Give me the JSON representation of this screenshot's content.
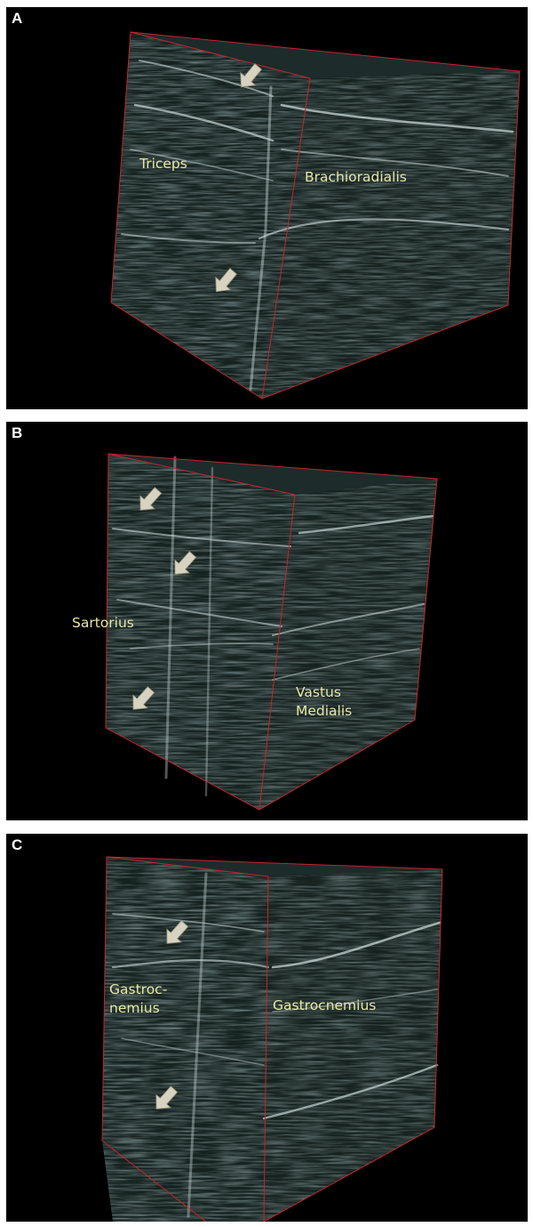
{
  "figure": {
    "colors": {
      "background": "#000000",
      "edge": "#c0262c",
      "label": "#e8e7a3",
      "arrow": "#d8d3c0"
    },
    "panels": [
      {
        "letter": "A",
        "labels": {
          "left": "Triceps",
          "right": "Brachioradialis"
        },
        "arrows": 2
      },
      {
        "letter": "B",
        "labels": {
          "left": "Sartorius",
          "right": "Vastus\nMedialis"
        },
        "arrows": 3
      },
      {
        "letter": "C",
        "labels": {
          "left": "Gastroc-\nnemius",
          "right": "Gastrocnemius"
        },
        "arrows": 2
      }
    ]
  }
}
